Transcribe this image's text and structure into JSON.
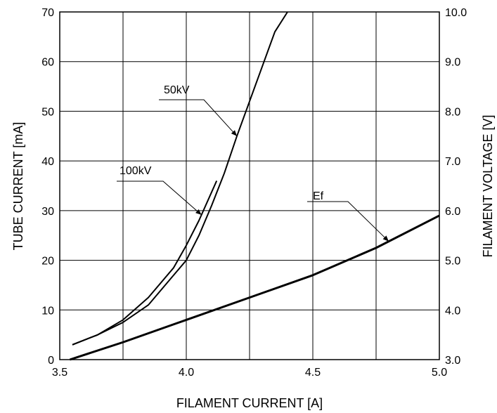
{
  "chart_data": {
    "type": "line",
    "title": "",
    "xlabel": "FILAMENT CURRENT  [A]",
    "ylabel": "TUBE CURRENT  [mA]",
    "y2label": "FILAMENT VOLTAGE  [V]",
    "xlim": [
      3.5,
      5.0
    ],
    "ylim": [
      0,
      70
    ],
    "y2lim": [
      3.0,
      10.0
    ],
    "x_ticks": [
      "3.5",
      "4.0",
      "4.5",
      "5.0"
    ],
    "x_minor_ticks": [
      3.75,
      4.25,
      4.75
    ],
    "y_ticks": [
      "0",
      "10",
      "20",
      "30",
      "40",
      "50",
      "60",
      "70"
    ],
    "y2_ticks": [
      "3.0",
      "4.0",
      "5.0",
      "6.0",
      "7.0",
      "8.0",
      "9.0",
      "10.0"
    ],
    "grid": true,
    "legend": "none",
    "series": [
      {
        "name": "50kV",
        "axis": "left",
        "x": [
          3.55,
          3.65,
          3.75,
          3.85,
          3.95,
          4.0,
          4.05,
          4.1,
          4.15,
          4.2,
          4.25,
          4.3,
          4.35,
          4.4
        ],
        "y": [
          3,
          5,
          7.5,
          11,
          17,
          20,
          25,
          31,
          37.5,
          45,
          52,
          59,
          66,
          70
        ]
      },
      {
        "name": "100kV",
        "axis": "left",
        "x": [
          3.55,
          3.65,
          3.75,
          3.85,
          3.95,
          4.0,
          4.05,
          4.12
        ],
        "y": [
          3,
          5,
          8,
          12.5,
          18.5,
          23,
          28,
          36
        ]
      },
      {
        "name": "Ef",
        "axis": "right",
        "x": [
          3.54,
          3.75,
          4.0,
          4.25,
          4.5,
          4.75,
          5.0
        ],
        "y": [
          3.0,
          3.35,
          3.8,
          4.25,
          4.7,
          5.25,
          5.9
        ]
      }
    ],
    "annotations": [
      {
        "text": "50kV",
        "series": "50kV",
        "at_x": 4.2
      },
      {
        "text": "100kV",
        "series": "100kV",
        "at_x": 4.06
      },
      {
        "text": "Ef",
        "series": "Ef",
        "at_x": 4.8
      }
    ]
  }
}
